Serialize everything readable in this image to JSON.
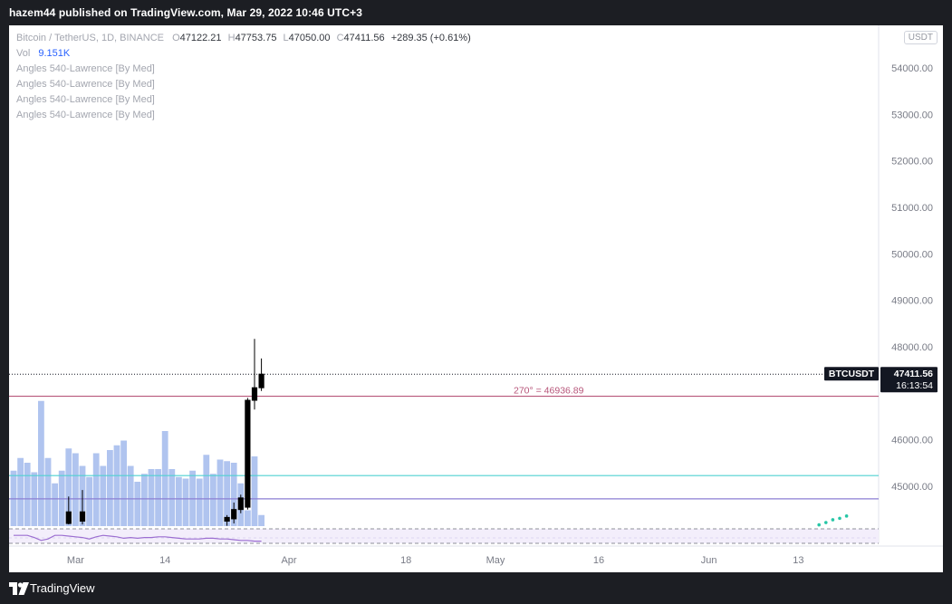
{
  "header": {
    "publisher_line": "hazem44 published on TradingView.com, Mar 29, 2022 10:46 UTC+3"
  },
  "legend": {
    "symbol": "Bitcoin / TetherUS, 1D, BINANCE",
    "open_label": "O",
    "open": "47122.21",
    "high_label": "H",
    "high": "47753.75",
    "low_label": "L",
    "low": "47050.00",
    "close_label": "C",
    "close": "47411.56",
    "change": "+289.35 (+0.61%)",
    "vol_label": "Vol",
    "vol_value": "9.151K",
    "indicators": [
      "Angles 540-Lawrence [By Med]",
      "Angles 540-Lawrence [By Med]",
      "Angles 540-Lawrence [By Med]",
      "Angles 540-Lawrence [By Med]"
    ]
  },
  "currency_button": "USDT",
  "footer": {
    "brand": "TradingView"
  },
  "colors": {
    "up": "#000000",
    "down": "#000000",
    "volume": "#b0c4ef",
    "level_red": "#b7567a",
    "level_cyan": "#4fd1d1",
    "level_purple": "#8b7fd4",
    "price_line": "#131722",
    "dots": "#26c6a6",
    "osc": "#9c6fd1"
  },
  "chart_data": {
    "type": "candlestick",
    "symbol": "BTCUSDT",
    "interval": "1D",
    "y_axis": {
      "range": [
        44100,
        54900
      ],
      "ticks": [
        54000,
        53000,
        52000,
        51000,
        50000,
        49000,
        48000,
        46000,
        45000
      ],
      "tick_labels": [
        "54000.00",
        "53000.00",
        "52000.00",
        "51000.00",
        "50000.00",
        "49000.00",
        "48000.00",
        "46000.00",
        "45000.00"
      ]
    },
    "x_axis": {
      "ticks": [
        {
          "bar": 9,
          "label": "Mar"
        },
        {
          "bar": 22,
          "label": "14"
        },
        {
          "bar": 40,
          "label": "Apr"
        },
        {
          "bar": 57,
          "label": "18"
        },
        {
          "bar": 70,
          "label": "May"
        },
        {
          "bar": 85,
          "label": "16"
        },
        {
          "bar": 101,
          "label": "Jun"
        },
        {
          "bar": 114,
          "label": "13"
        }
      ]
    },
    "candles": [
      {
        "bar": 8,
        "o": 44200,
        "h": 44780,
        "l": 44180,
        "c": 44450
      },
      {
        "bar": 10,
        "o": 44250,
        "h": 44920,
        "l": 44180,
        "c": 44450
      },
      {
        "bar": 31,
        "o": 44250,
        "h": 44380,
        "l": 44150,
        "c": 44330
      },
      {
        "bar": 32,
        "o": 44300,
        "h": 44650,
        "l": 44200,
        "c": 44500
      },
      {
        "bar": 33,
        "o": 44500,
        "h": 44820,
        "l": 44420,
        "c": 44750
      },
      {
        "bar": 34,
        "o": 44550,
        "h": 46900,
        "l": 44500,
        "c": 46850
      },
      {
        "bar": 35,
        "o": 46850,
        "h": 48170,
        "l": 46650,
        "c": 47120
      },
      {
        "bar": 36,
        "o": 47120,
        "h": 47750,
        "l": 47050,
        "c": 47411.56
      }
    ],
    "volume": [
      0.35,
      0.43,
      0.4,
      0.34,
      0.79,
      0.43,
      0.27,
      0.35,
      0.49,
      0.46,
      0.38,
      0.31,
      0.46,
      0.38,
      0.48,
      0.51,
      0.54,
      0.38,
      0.28,
      0.33,
      0.36,
      0.36,
      0.6,
      0.36,
      0.31,
      0.3,
      0.35,
      0.3,
      0.45,
      0.33,
      0.42,
      0.41,
      0.4,
      0.27,
      0.1,
      0.44,
      0.07
    ],
    "volume_value_label": "9.151K",
    "levels": [
      {
        "price": 46936.89,
        "label": "270° = 46936.89",
        "color": "#b7567a"
      },
      {
        "price": 45230,
        "color": "#4fd1d1"
      },
      {
        "price": 44730,
        "color": "#8b7fd4"
      }
    ],
    "last_price": {
      "symbol_tag": "BTCUSDT",
      "value": "47411.56",
      "countdown": "16:13:54"
    },
    "future_dots": [
      {
        "bar": 117,
        "price": 44170
      },
      {
        "bar": 118,
        "price": 44220
      },
      {
        "bar": 119,
        "price": 44280
      },
      {
        "bar": 120,
        "price": 44310
      },
      {
        "bar": 121,
        "price": 44360
      }
    ],
    "oscillator": [
      0.55,
      0.55,
      0.55,
      0.4,
      0.2,
      0.3,
      0.55,
      0.55,
      0.5,
      0.45,
      0.4,
      0.3,
      0.45,
      0.55,
      0.5,
      0.45,
      0.35,
      0.4,
      0.35,
      0.4,
      0.4,
      0.45,
      0.45,
      0.4,
      0.35,
      0.3,
      0.3,
      0.3,
      0.35,
      0.35,
      0.3,
      0.3,
      0.25,
      0.2,
      0.2,
      0.15,
      0.15
    ]
  }
}
